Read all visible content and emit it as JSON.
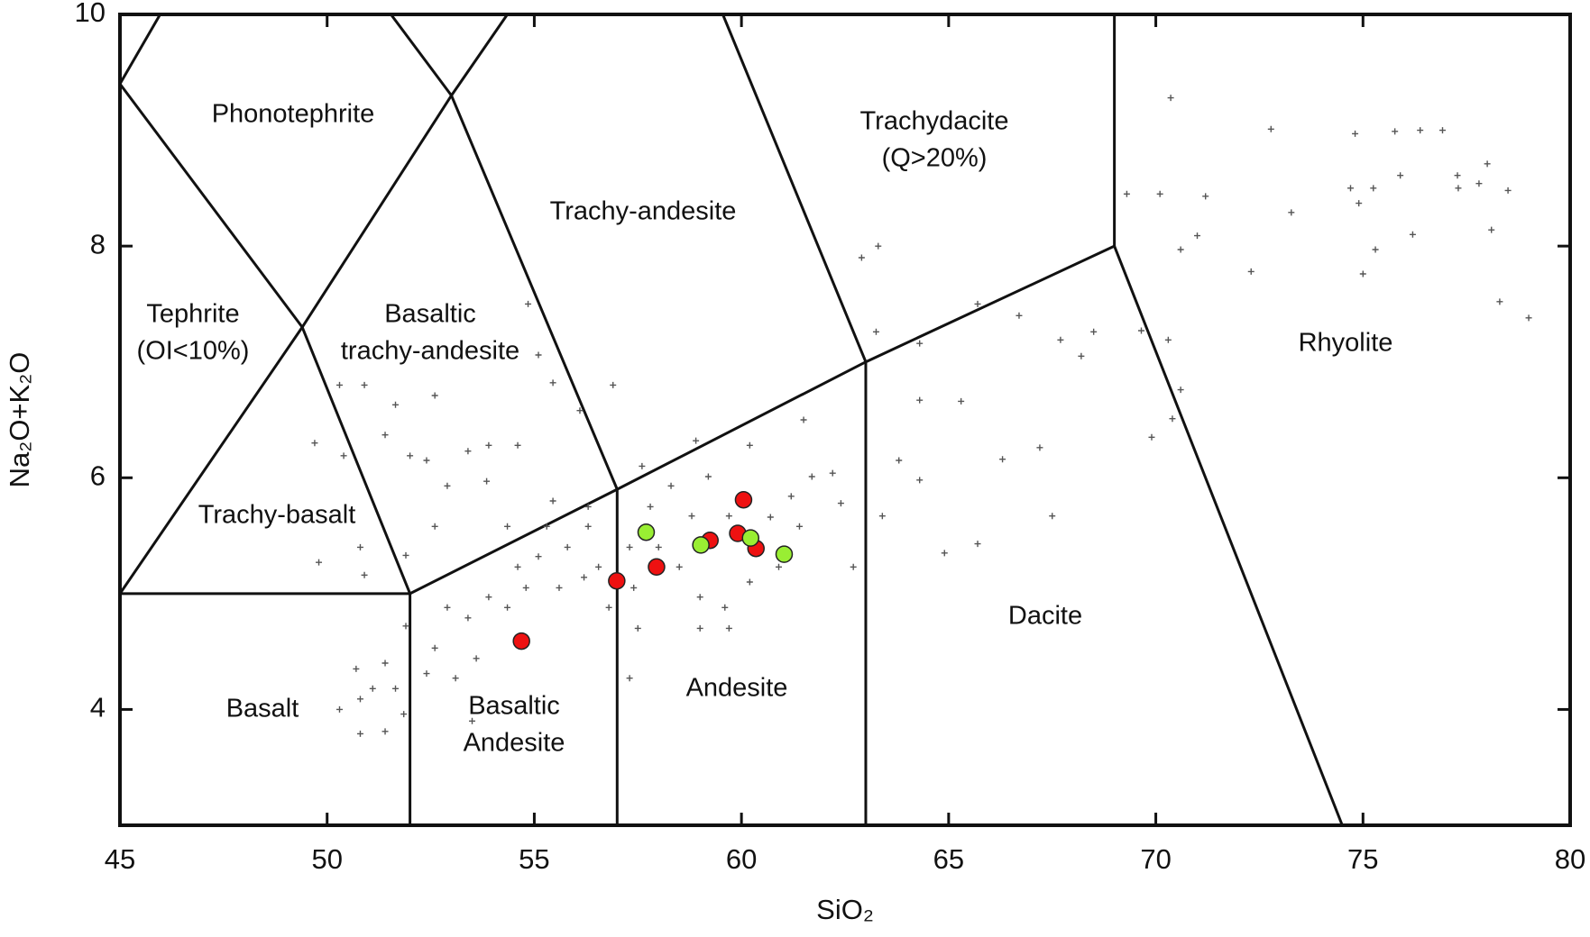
{
  "chart_data": {
    "type": "scatter",
    "xlabel": "SiO₂",
    "ylabel": "Na₂O+K₂O",
    "xlim": [
      45,
      80
    ],
    "ylim": [
      3,
      10
    ],
    "xticks": [
      45,
      50,
      55,
      60,
      65,
      70,
      75,
      80
    ],
    "yticks": [
      4,
      6,
      8,
      10
    ],
    "grid": false,
    "boundary_color": "#111111",
    "boundaries": [
      {
        "x": [
          45,
          52,
          57,
          63,
          69
        ],
        "y": [
          5,
          5,
          5.9,
          7,
          8
        ]
      },
      {
        "x": [
          52,
          52
        ],
        "y": [
          3,
          5
        ]
      },
      {
        "x": [
          57,
          57
        ],
        "y": [
          3,
          5.9
        ]
      },
      {
        "x": [
          63,
          63
        ],
        "y": [
          3,
          7
        ]
      },
      {
        "x": [
          69,
          69
        ],
        "y": [
          8,
          10
        ]
      },
      {
        "x": [
          69,
          74.5
        ],
        "y": [
          8,
          3
        ]
      },
      {
        "x": [
          45,
          49.4,
          53,
          54.35
        ],
        "y": [
          5,
          7.3,
          9.3,
          10
        ]
      },
      {
        "x": [
          49.4,
          52
        ],
        "y": [
          7.3,
          5
        ]
      },
      {
        "x": [
          45.97,
          45,
          49.4
        ],
        "y": [
          10,
          9.4,
          7.3
        ]
      },
      {
        "x": [
          51.54,
          53,
          57
        ],
        "y": [
          10,
          9.3,
          5.9
        ]
      },
      {
        "x": [
          59.55,
          63
        ],
        "y": [
          10,
          7
        ]
      }
    ],
    "regions": [
      [
        "Phonotephrite"
      ],
      [
        "Tephrite",
        "(OI<10%)"
      ],
      [
        "Basaltic",
        "trachy-andesite"
      ],
      [
        "Trachy-andesite"
      ],
      [
        "Trachydacite",
        "(Q>20%)"
      ],
      [
        "Rhyolite"
      ],
      [
        "Trachy-basalt"
      ],
      [
        "Basalt"
      ],
      [
        "Basaltic",
        "Andesite"
      ],
      [
        "Andesite"
      ],
      [
        "Dacite"
      ]
    ],
    "series": [
      {
        "marker": "cross",
        "color": "#555555",
        "x": [
          70.36,
          72.78,
          74.81,
          75.77,
          76.38,
          76.92,
          78.0,
          77.28,
          77.3,
          77.8,
          78.5,
          75.9,
          75.25,
          74.7,
          74.9,
          73.27,
          69.3,
          70.1,
          71.2,
          71.0,
          70.6,
          72.3,
          75.0,
          76.2,
          78.1,
          78.3,
          79.0,
          75.3,
          69.65,
          70.3,
          70.6,
          69.9,
          70.4,
          67.7,
          68.2,
          68.5,
          66.7,
          67.2,
          67.5,
          66.3,
          65.3,
          64.3,
          63.8,
          64.3,
          64.9,
          65.7,
          63.4,
          63.3,
          62.9,
          64.3,
          63.25,
          65.7,
          61.7,
          62.2,
          61.2,
          60.7,
          61.4,
          60.9,
          60.2,
          59.6,
          59.0,
          58.5,
          58.0,
          57.8,
          58.3,
          58.8,
          59.7,
          59.2,
          57.3,
          57.4,
          57.5,
          59.0,
          59.7,
          57.3,
          60.2,
          58.9,
          57.6,
          61.5,
          62.4,
          62.7,
          56.9,
          56.3,
          55.8,
          55.3,
          55.1,
          55.6,
          56.2,
          56.55,
          54.8,
          54.35,
          53.9,
          53.4,
          52.9,
          52.6,
          53.6,
          53.1,
          53.5,
          52.4,
          54.6,
          55.45,
          54.35,
          56.8,
          56.3,
          54.85,
          55.1,
          55.45,
          53.4,
          53.9,
          54.6,
          56.1,
          52.6,
          51.65,
          50.9,
          50.3,
          52.4,
          52.0,
          52.6,
          52.9,
          53.85,
          51.4,
          49.7,
          50.4,
          49.8,
          50.8,
          50.9,
          51.9,
          50.7,
          51.1,
          51.4,
          51.65,
          50.8,
          50.3,
          50.8,
          51.4,
          51.85,
          51.9
        ],
        "values": [
          9.28,
          9.01,
          8.97,
          8.99,
          9.0,
          9.0,
          8.71,
          8.61,
          8.5,
          8.54,
          8.48,
          8.61,
          8.5,
          8.5,
          8.37,
          8.29,
          8.45,
          8.45,
          8.43,
          8.09,
          7.97,
          7.78,
          7.76,
          8.1,
          8.14,
          7.52,
          7.38,
          7.97,
          7.27,
          7.19,
          6.76,
          6.35,
          6.51,
          7.19,
          7.05,
          7.26,
          7.4,
          6.26,
          5.67,
          6.16,
          6.66,
          6.67,
          6.15,
          5.98,
          5.35,
          5.43,
          5.67,
          8.0,
          7.9,
          7.16,
          7.26,
          7.5,
          6.01,
          6.04,
          5.84,
          5.66,
          5.58,
          5.23,
          5.1,
          4.88,
          4.97,
          5.23,
          5.4,
          5.75,
          5.93,
          5.67,
          5.67,
          6.01,
          5.4,
          5.05,
          4.7,
          4.7,
          4.7,
          4.27,
          6.28,
          6.32,
          6.1,
          6.5,
          5.78,
          5.23,
          6.8,
          5.58,
          5.4,
          5.58,
          5.32,
          5.05,
          5.14,
          5.23,
          5.05,
          4.88,
          4.97,
          4.79,
          4.88,
          4.53,
          4.44,
          4.27,
          3.9,
          4.31,
          5.23,
          5.8,
          5.58,
          4.88,
          5.75,
          7.5,
          7.06,
          6.82,
          6.23,
          6.28,
          6.28,
          6.58,
          6.71,
          6.63,
          6.8,
          6.8,
          6.15,
          6.19,
          5.58,
          5.93,
          5.97,
          6.37,
          6.3,
          6.19,
          5.27,
          5.4,
          5.16,
          5.33,
          4.35,
          4.18,
          4.4,
          4.18,
          4.09,
          4.0,
          3.79,
          3.81,
          3.96,
          4.72
        ]
      },
      {
        "marker": "circle",
        "color": "#ee1111",
        "x": [
          54.69,
          56.99,
          57.95,
          59.24,
          60.05,
          59.91,
          60.35
        ],
        "values": [
          4.59,
          5.11,
          5.23,
          5.46,
          5.81,
          5.52,
          5.39
        ]
      },
      {
        "marker": "circle",
        "color": "#99ee33",
        "x": [
          57.7,
          59.02,
          60.22,
          61.03
        ],
        "values": [
          5.53,
          5.42,
          5.48,
          5.34
        ]
      }
    ]
  }
}
